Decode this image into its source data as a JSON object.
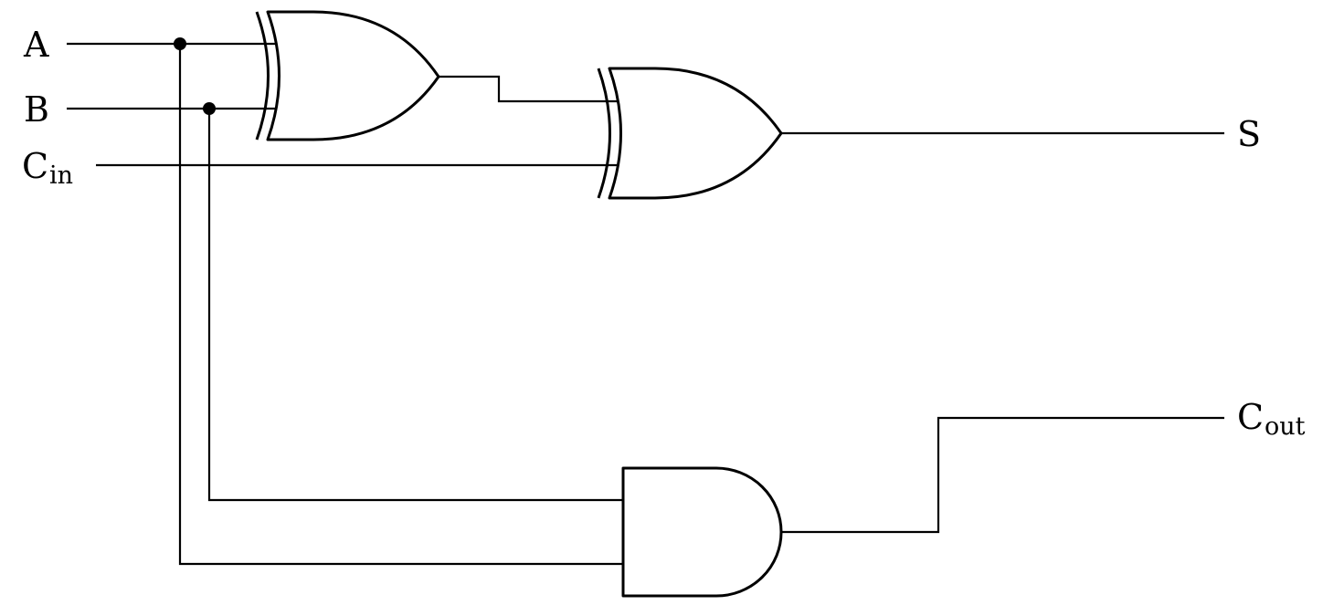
{
  "circuit": {
    "inputs": {
      "a": {
        "main": "A"
      },
      "b": {
        "main": "B"
      },
      "cin": {
        "main": "C",
        "sub": "in"
      }
    },
    "outputs": {
      "sum": {
        "main": "S"
      },
      "cout": {
        "main": "C",
        "sub": "out"
      }
    },
    "colors": {
      "stroke": "#000000",
      "background": "#ffffff"
    }
  }
}
